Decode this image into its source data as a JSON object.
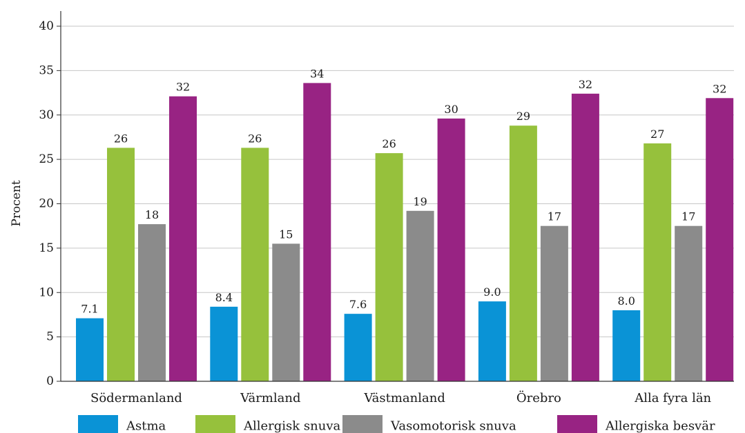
{
  "chart_data": {
    "type": "bar",
    "title": "",
    "xlabel": "",
    "ylabel": "Procent",
    "ylim": [
      0,
      40
    ],
    "yticks": [
      0,
      5,
      10,
      15,
      20,
      25,
      30,
      35,
      40
    ],
    "ytick_labels": [
      "0",
      "5",
      "10",
      "15",
      "20",
      "25",
      "30",
      "35",
      "40"
    ],
    "grid": true,
    "legend_position": "bottom",
    "categories": [
      "Södermanland",
      "Värmland",
      "Västmanland",
      "Örebro",
      "Alla fyra län"
    ],
    "series": [
      {
        "name": "Astma",
        "color": "#0a93d6",
        "values": [
          7.1,
          8.4,
          7.6,
          9.0,
          8.0
        ],
        "labels": [
          "7.1",
          "8.4",
          "7.6",
          "9.0",
          "8.0"
        ]
      },
      {
        "name": "Allergisk snuva",
        "color": "#96c13c",
        "values": [
          26.3,
          26.3,
          25.7,
          28.8,
          26.8
        ],
        "labels": [
          "26",
          "26",
          "26",
          "29",
          "27"
        ]
      },
      {
        "name": "Vasomotorisk snuva",
        "color": "#8b8b8b",
        "values": [
          17.7,
          15.5,
          19.2,
          17.5,
          17.5
        ],
        "labels": [
          "18",
          "15",
          "19",
          "17",
          "17"
        ]
      },
      {
        "name": "Allergiska besvär",
        "color": "#982383",
        "values": [
          32.1,
          33.6,
          29.6,
          32.4,
          31.9
        ],
        "labels": [
          "32",
          "34",
          "30",
          "32",
          "32"
        ]
      }
    ]
  }
}
